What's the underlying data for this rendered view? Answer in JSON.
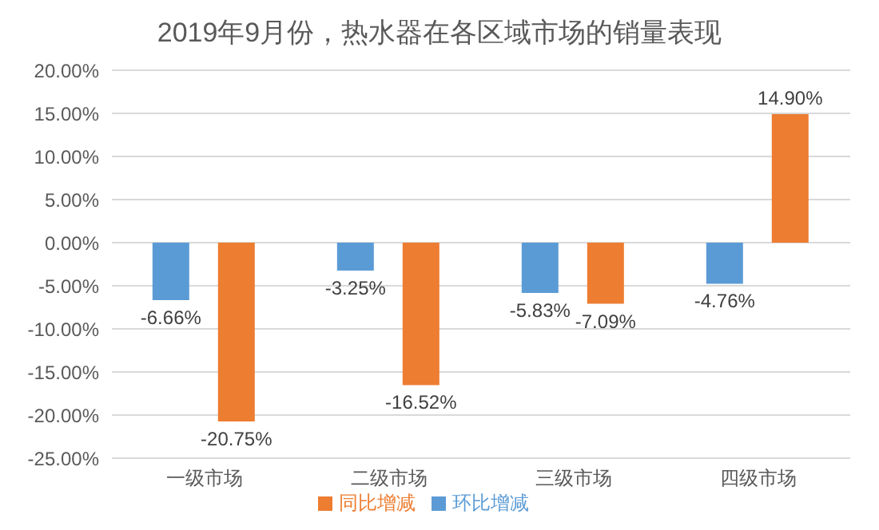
{
  "chart_data": {
    "type": "bar",
    "title": "2019年9月份，热水器在各区域市场的销量表现",
    "categories": [
      "一级市场",
      "二级市场",
      "三级市场",
      "四级市场"
    ],
    "series": [
      {
        "name": "环比增减",
        "color": "#5b9bd5",
        "values": [
          -6.66,
          -3.25,
          -5.83,
          -4.76
        ],
        "value_labels": [
          "-6.66%",
          "-3.25%",
          "-5.83%",
          "-4.76%"
        ]
      },
      {
        "name": "同比增减",
        "color": "#ed7d31",
        "values": [
          -20.75,
          -16.52,
          -7.09,
          14.9
        ],
        "value_labels": [
          "-20.75%",
          "-16.52%",
          "-7.09%",
          "14.90%"
        ]
      }
    ],
    "ylim": [
      -25,
      20
    ],
    "yticks": [
      {
        "value": 20,
        "label": "20.00%"
      },
      {
        "value": 15,
        "label": "15.00%"
      },
      {
        "value": 10,
        "label": "10.00%"
      },
      {
        "value": 5,
        "label": "5.00%"
      },
      {
        "value": 0,
        "label": "0.00%"
      },
      {
        "value": -5,
        "label": "-5.00%"
      },
      {
        "value": -10,
        "label": "-10.00%"
      },
      {
        "value": -15,
        "label": "-15.00%"
      },
      {
        "value": -20,
        "label": "-20.00%"
      },
      {
        "value": -25,
        "label": "-25.00%"
      }
    ],
    "grid": "y",
    "legend": "bottom"
  }
}
